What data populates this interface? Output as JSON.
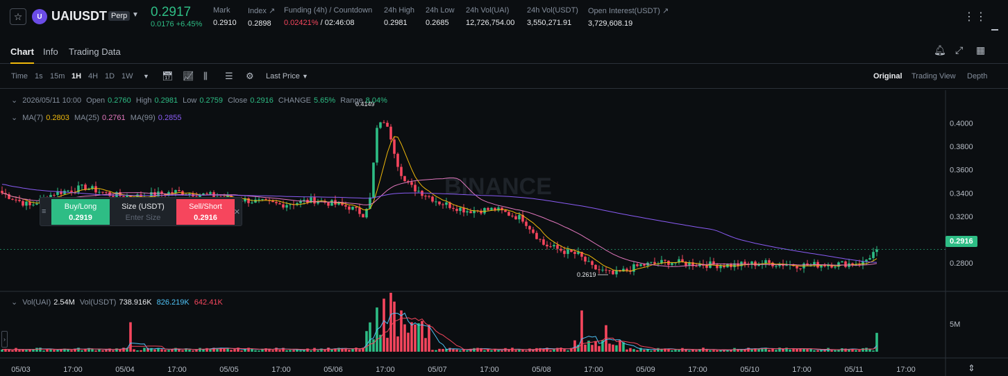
{
  "ticker": {
    "symbol": "UAIUSDT",
    "badge": "Perp",
    "coin_icon": "uai-coin-icon",
    "last_price": "0.2917",
    "change": "0.0176 +6.45%",
    "stats": [
      {
        "label": "Mark",
        "value": "0.2910"
      },
      {
        "label": "Index ↗",
        "value": "0.2898"
      },
      {
        "label": "Funding (4h) / Countdown",
        "value_rate": "0.02421%",
        "value_countdown": "/ 02:46:08"
      },
      {
        "label": "24h High",
        "value": "0.2981"
      },
      {
        "label": "24h Low",
        "value": "0.2685"
      },
      {
        "label": "24h Vol(UAI)",
        "value": "12,726,754.00"
      },
      {
        "label": "24h Vol(USDT)",
        "value": "3,550,271.91"
      },
      {
        "label": "Open Interest(USDT) ↗",
        "value": "3,729,608.19"
      }
    ]
  },
  "tabs": [
    "Chart",
    "Info",
    "Trading Data"
  ],
  "toolbar": {
    "time_label": "Time",
    "intervals": [
      "1s",
      "15m",
      "1H",
      "4H",
      "1D",
      "1W"
    ],
    "active_interval": "1H",
    "price_type": "Last Price",
    "views": [
      "Original",
      "Trading View",
      "Depth"
    ]
  },
  "legend": {
    "ohlc": {
      "date": "2026/05/11 10:00",
      "open_label": "Open",
      "open": "0.2760",
      "high_label": "High",
      "high": "0.2981",
      "low_label": "Low",
      "low": "0.2759",
      "close_label": "Close",
      "close": "0.2916",
      "change_label": "CHANGE",
      "change": "5.65%",
      "range_label": "Range",
      "range": "8.04%"
    },
    "ma": [
      {
        "label": "MA(7)",
        "value": "0.2803",
        "color": "#f0b90b"
      },
      {
        "label": "MA(25)",
        "value": "0.2761",
        "color": "#e478bf"
      },
      {
        "label": "MA(99)",
        "value": "0.2855",
        "color": "#8a5cf5"
      }
    ],
    "vol": {
      "label1": "Vol(UAI)",
      "value1": "2.54M",
      "label2": "Vol(USDT)",
      "value2": "738.916K",
      "ma1": "826.219K",
      "ma2": "642.41K"
    }
  },
  "order_panel": {
    "buy_label": "Buy/Long",
    "buy_price": "0.2919",
    "size_label": "Size (USDT)",
    "size_placeholder": "Enter Size",
    "sell_label": "Sell/Short",
    "sell_price": "0.2916"
  },
  "chart_data": {
    "type": "candlestick",
    "price_axis": {
      "ticks": [
        "0.4000",
        "0.3800",
        "0.3600",
        "0.3400",
        "0.3200",
        "0.3000",
        "0.2800"
      ],
      "range": [
        0.258,
        0.42
      ]
    },
    "volume_axis": {
      "ticks": [
        "5M"
      ]
    },
    "x_ticks": [
      "05/03",
      "17:00",
      "05/04",
      "17:00",
      "05/05",
      "17:00",
      "05/06",
      "17:00",
      "05/07",
      "17:00",
      "05/08",
      "17:00",
      "05/09",
      "17:00",
      "05/10",
      "17:00",
      "05/11",
      "17:00"
    ],
    "current_price": "0.2916",
    "annotations": {
      "high": "0.4149",
      "low": "0.2619"
    },
    "watermark": "BINANCE",
    "colors": {
      "up": "#2ebd85",
      "down": "#f6465d",
      "ma7": "#f0b90b",
      "ma25": "#e478bf",
      "ma99": "#8a5cf5",
      "vol_ma1": "#4fc3f7",
      "vol_ma2": "#f6465d"
    },
    "close_anchors": [
      [
        0,
        0.34
      ],
      [
        8,
        0.329
      ],
      [
        15,
        0.34
      ],
      [
        24,
        0.345
      ],
      [
        32,
        0.338
      ],
      [
        40,
        0.337
      ],
      [
        50,
        0.341
      ],
      [
        60,
        0.338
      ],
      [
        70,
        0.334
      ],
      [
        80,
        0.33
      ],
      [
        90,
        0.334
      ],
      [
        100,
        0.328
      ],
      [
        104,
        0.322
      ],
      [
        106,
        0.335
      ],
      [
        108,
        0.395
      ],
      [
        110,
        0.402
      ],
      [
        112,
        0.388
      ],
      [
        114,
        0.365
      ],
      [
        116,
        0.35
      ],
      [
        118,
        0.345
      ],
      [
        120,
        0.342
      ],
      [
        126,
        0.332
      ],
      [
        134,
        0.325
      ],
      [
        142,
        0.326
      ],
      [
        150,
        0.318
      ],
      [
        156,
        0.296
      ],
      [
        162,
        0.29
      ],
      [
        166,
        0.287
      ],
      [
        170,
        0.276
      ],
      [
        176,
        0.27
      ],
      [
        184,
        0.278
      ],
      [
        192,
        0.281
      ],
      [
        200,
        0.279
      ],
      [
        210,
        0.278
      ],
      [
        220,
        0.28
      ],
      [
        230,
        0.278
      ],
      [
        240,
        0.279
      ],
      [
        248,
        0.28
      ],
      [
        252,
        0.2916
      ]
    ],
    "volume_spikes": [
      {
        "i": 37,
        "v": 0.5
      },
      {
        "i": 105,
        "v": 0.35
      },
      {
        "i": 108,
        "v": 0.75
      },
      {
        "i": 110,
        "v": 0.9
      },
      {
        "i": 112,
        "v": 1.0
      },
      {
        "i": 113,
        "v": 0.85
      },
      {
        "i": 115,
        "v": 0.7
      },
      {
        "i": 118,
        "v": 0.5
      },
      {
        "i": 167,
        "v": 0.7
      },
      {
        "i": 174,
        "v": 0.45
      },
      {
        "i": 252,
        "v": 0.32
      }
    ]
  }
}
